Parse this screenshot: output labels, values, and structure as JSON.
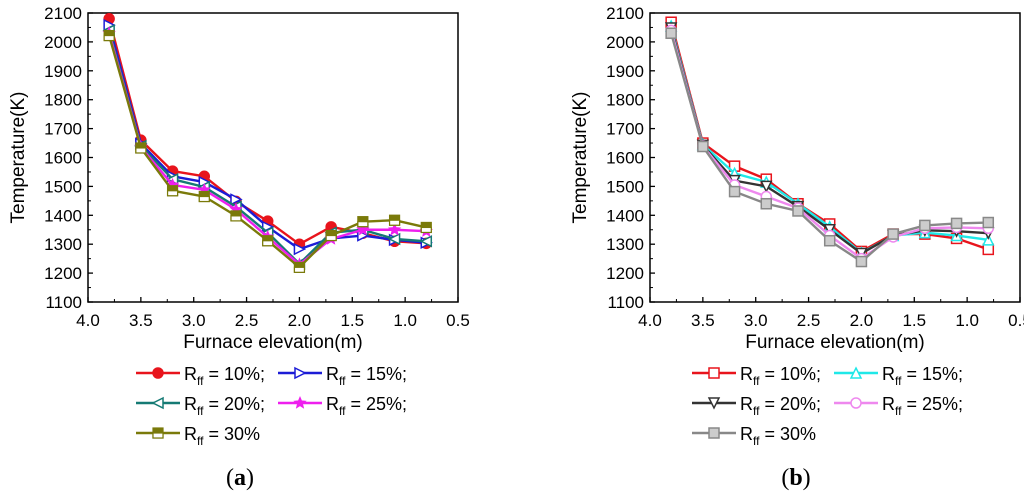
{
  "chart_data": [
    {
      "type": "line",
      "panel_label": "(a)",
      "panel_letter": "a",
      "xlabel": "Furnace elevation(m)",
      "ylabel": "Temperature(K)",
      "xlim": [
        4.0,
        0.5
      ],
      "ylim": [
        1100,
        2100
      ],
      "xticks": [
        "4.0",
        "3.5",
        "3.0",
        "2.5",
        "2.0",
        "1.5",
        "1.0",
        "0.5"
      ],
      "yticks": [
        "1100",
        "1200",
        "1300",
        "1400",
        "1500",
        "1600",
        "1700",
        "1800",
        "1900",
        "2000",
        "2100"
      ],
      "x": [
        3.8,
        3.5,
        3.2,
        2.9,
        2.6,
        2.3,
        2.0,
        1.7,
        1.4,
        1.1,
        0.8
      ],
      "series": [
        {
          "name": "10%",
          "color": "#e8141c",
          "marker": "circle",
          "legend_prefix": "R",
          "legend_sub": "ff",
          "legend_suffix": " = 10%;",
          "values": [
            2080,
            1660,
            1553,
            1535,
            1448,
            1380,
            1300,
            1360,
            1338,
            1310,
            1303
          ]
        },
        {
          "name": "15%",
          "color": "#1c1cd6",
          "marker": "tri-right",
          "legend_prefix": "R",
          "legend_sub": "ff",
          "legend_suffix": " = 15%;",
          "values": [
            2058,
            1648,
            1535,
            1515,
            1455,
            1360,
            1283,
            1320,
            1330,
            1315,
            1305
          ]
        },
        {
          "name": "20%",
          "color": "#157a74",
          "marker": "tri-left",
          "legend_prefix": "R",
          "legend_sub": "ff",
          "legend_suffix": " = 20%;",
          "values": [
            2040,
            1640,
            1525,
            1498,
            1430,
            1340,
            1232,
            1340,
            1350,
            1318,
            1310
          ]
        },
        {
          "name": "25%",
          "color": "#ee1fee",
          "marker": "star",
          "legend_prefix": "R",
          "legend_sub": "ff",
          "legend_suffix": " = 25%;",
          "values": [
            2030,
            1636,
            1505,
            1488,
            1420,
            1325,
            1230,
            1318,
            1350,
            1350,
            1345
          ]
        },
        {
          "name": "30%",
          "color": "#7a7a0a",
          "marker": "square",
          "legend_prefix": "R",
          "legend_sub": "ff",
          "legend_suffix": " = 30%",
          "values": [
            2022,
            1633,
            1485,
            1465,
            1398,
            1312,
            1220,
            1330,
            1378,
            1383,
            1358
          ]
        }
      ]
    },
    {
      "type": "line",
      "panel_label": "(b)",
      "panel_letter": "b",
      "xlabel": "Furnace elevation(m)",
      "ylabel": "Temperature(K)",
      "xlim": [
        4.0,
        0.5
      ],
      "ylim": [
        1100,
        2100
      ],
      "xticks": [
        "4.0",
        "3.5",
        "3.0",
        "2.5",
        "2.0",
        "1.5",
        "1.0",
        "0.5"
      ],
      "yticks": [
        "1100",
        "1200",
        "1300",
        "1400",
        "1500",
        "1600",
        "1700",
        "1800",
        "1900",
        "2000",
        "2100"
      ],
      "x": [
        3.8,
        3.5,
        3.2,
        2.9,
        2.6,
        2.3,
        2.0,
        1.7,
        1.4,
        1.1,
        0.8
      ],
      "series": [
        {
          "name": "10%",
          "color": "#e8141c",
          "marker": "square-open",
          "legend_prefix": "R",
          "legend_sub": "ff",
          "legend_suffix": " = 10%;",
          "values": [
            2068,
            1650,
            1570,
            1525,
            1440,
            1370,
            1275,
            1335,
            1335,
            1320,
            1282
          ]
        },
        {
          "name": "15%",
          "color": "#1fe8e8",
          "marker": "triangle-up",
          "legend_prefix": "R",
          "legend_sub": "ff",
          "legend_suffix": " = 15%;",
          "values": [
            2055,
            1645,
            1545,
            1515,
            1440,
            1360,
            1270,
            1330,
            1340,
            1330,
            1315
          ]
        },
        {
          "name": "20%",
          "color": "#333333",
          "marker": "triangle-down",
          "legend_prefix": "R",
          "legend_sub": "ff",
          "legend_suffix": " = 20%;",
          "values": [
            2048,
            1642,
            1520,
            1500,
            1430,
            1350,
            1268,
            1330,
            1348,
            1345,
            1338
          ]
        },
        {
          "name": "25%",
          "color": "#ee88ee",
          "marker": "circle-open",
          "legend_prefix": "R",
          "legend_sub": "ff",
          "legend_suffix": " = 25%;",
          "values": [
            2040,
            1640,
            1505,
            1465,
            1425,
            1330,
            1250,
            1325,
            1355,
            1358,
            1355
          ]
        },
        {
          "name": "30%",
          "color": "#888888",
          "marker": "square-gray",
          "legend_prefix": "R",
          "legend_sub": "ff",
          "legend_suffix": " = 30%",
          "values": [
            2030,
            1638,
            1482,
            1440,
            1415,
            1312,
            1240,
            1335,
            1365,
            1372,
            1375
          ]
        }
      ]
    }
  ]
}
